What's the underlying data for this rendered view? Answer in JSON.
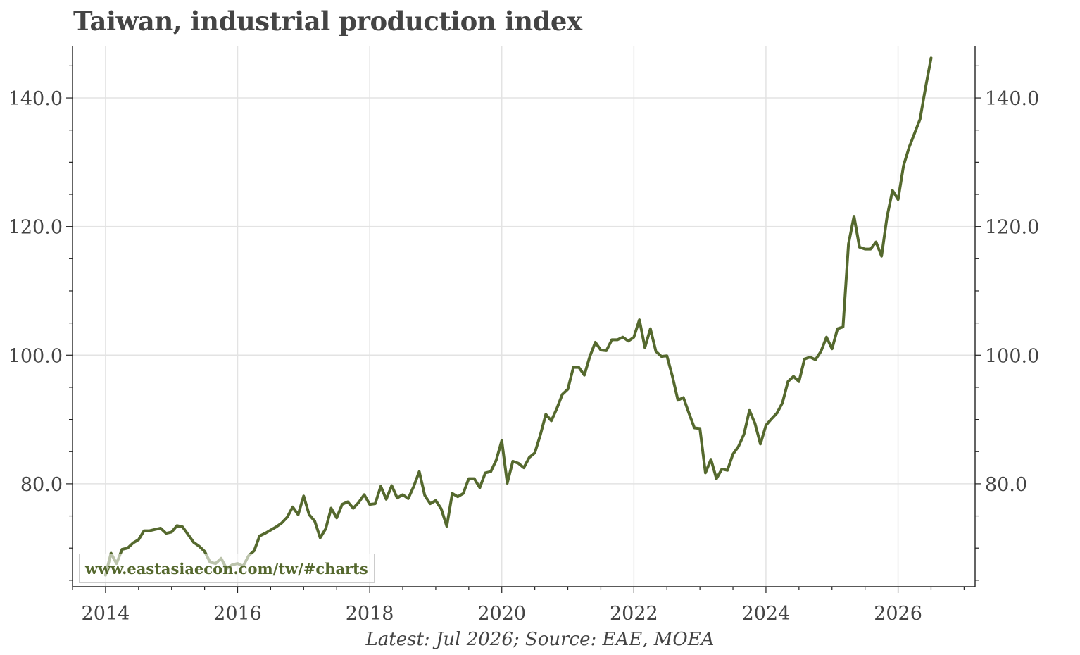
{
  "chart_data": {
    "type": "line",
    "title": "Taiwan, industrial production index",
    "caption": "Latest: Jul 2026; Source: EAE, MOEA",
    "watermark": "www.eastasiaecon.com/tw/#charts",
    "x_ticks": [
      "2014",
      "2016",
      "2018",
      "2020",
      "2022",
      "2024",
      "2026"
    ],
    "y_ticks": [
      "80.0",
      "100.0",
      "120.0",
      "140.0"
    ],
    "y_tick_values": [
      80,
      100,
      120,
      140
    ],
    "ylim": [
      64.0,
      148.0
    ],
    "xlim": [
      "2013-07",
      "2027-03"
    ],
    "grid": true,
    "dual_y_axis": true,
    "line_color": "#55692e",
    "series": [
      {
        "start": "2014-01",
        "frequency": "monthly",
        "values": [
          65.8,
          69.2,
          67.6,
          69.8,
          70.0,
          70.8,
          71.3,
          72.7,
          72.7,
          72.9,
          73.1,
          72.3,
          72.5,
          73.5,
          73.3,
          72.1,
          70.9,
          70.3,
          69.5,
          67.8,
          67.6,
          68.4,
          66.8,
          67.4,
          67.6,
          67.2,
          68.8,
          69.6,
          71.9,
          72.3,
          72.8,
          73.3,
          73.9,
          74.8,
          76.4,
          75.2,
          78.1,
          75.2,
          74.2,
          71.6,
          73.0,
          76.2,
          74.7,
          76.8,
          77.2,
          76.2,
          77.1,
          78.3,
          76.8,
          76.9,
          79.6,
          77.6,
          79.7,
          77.8,
          78.3,
          77.7,
          79.6,
          81.9,
          78.2,
          76.9,
          77.4,
          76.1,
          73.4,
          78.5,
          78.0,
          78.5,
          80.8,
          80.8,
          79.4,
          81.7,
          81.9,
          83.7,
          86.7,
          80.1,
          83.5,
          83.2,
          82.5,
          84.1,
          84.8,
          87.6,
          90.8,
          89.8,
          91.7,
          93.9,
          94.7,
          98.1,
          98.1,
          96.9,
          99.8,
          102.0,
          100.8,
          100.7,
          102.4,
          102.4,
          102.8,
          102.2,
          102.8,
          105.5,
          101.2,
          104.1,
          100.6,
          99.8,
          99.9,
          96.7,
          93.0,
          93.4,
          91.0,
          88.7,
          88.6,
          81.7,
          83.8,
          80.8,
          82.3,
          82.1,
          84.6,
          85.8,
          87.7,
          91.4,
          89.4,
          86.2,
          89.1,
          90.1,
          91.0,
          92.6,
          95.9,
          96.7,
          95.9,
          99.4,
          99.7,
          99.3,
          100.6,
          102.8,
          101.0,
          104.1,
          104.4,
          117.3,
          121.6,
          116.8,
          116.5,
          116.5,
          117.6,
          115.4,
          121.5,
          125.6,
          124.2,
          129.5,
          132.3,
          134.5,
          136.7,
          141.6,
          146.2
        ]
      }
    ]
  }
}
